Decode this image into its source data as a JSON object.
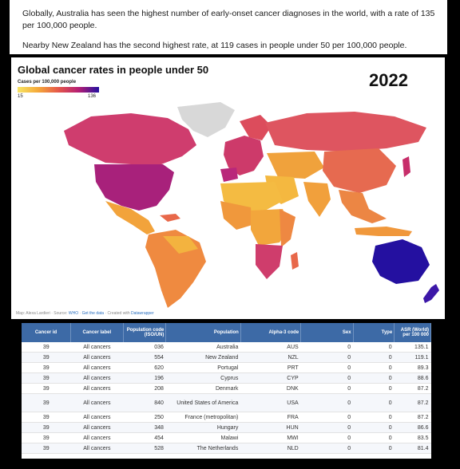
{
  "article": {
    "paragraph1": "Globally, Australia has seen the highest number of early-onset cancer diagnoses in the world, with a rate of 135 per 100,000 people.",
    "paragraph2": "Nearby New Zealand has the second highest rate, at 119 cases in people under 50 per 100,000 people."
  },
  "map": {
    "title": "Global cancer rates in people under 50",
    "year": "2022",
    "legend_title": "Cases per 100,000 people",
    "legend_min": "15",
    "legend_max": "136",
    "credit_prefix": "Map: Alexa Lardieri · Source: ",
    "credit_source": "WHO",
    "credit_mid": " · ",
    "credit_getdata": "Get the data",
    "credit_suffix": " · Created with ",
    "credit_tool": "Datawrapper",
    "colors": {
      "low": "#f7e463",
      "mid": "#f5a93a",
      "high_mid": "#e5584a",
      "high": "#b41e74",
      "max": "#2410a0",
      "no_data": "#d8d8d8"
    }
  },
  "table": {
    "headers": [
      "Cancer id",
      "Cancer label",
      "Population code (ISO/UN)",
      "Population",
      "Alpha-3 code",
      "Sex",
      "Type",
      "ASR (World) per 100 000"
    ],
    "rows": [
      {
        "id": "39",
        "label": "All cancers",
        "code": "036",
        "population": "Australia",
        "alpha3": "AUS",
        "sex": "0",
        "type": "0",
        "asr": "135.1"
      },
      {
        "id": "39",
        "label": "All cancers",
        "code": "554",
        "population": "New Zealand",
        "alpha3": "NZL",
        "sex": "0",
        "type": "0",
        "asr": "119.1"
      },
      {
        "id": "39",
        "label": "All cancers",
        "code": "620",
        "population": "Portugal",
        "alpha3": "PRT",
        "sex": "0",
        "type": "0",
        "asr": "89.3"
      },
      {
        "id": "39",
        "label": "All cancers",
        "code": "196",
        "population": "Cyprus",
        "alpha3": "CYP",
        "sex": "0",
        "type": "0",
        "asr": "88.6"
      },
      {
        "id": "39",
        "label": "All cancers",
        "code": "208",
        "population": "Denmark",
        "alpha3": "DNK",
        "sex": "0",
        "type": "0",
        "asr": "87.2"
      },
      {
        "id": "39",
        "label": "All cancers",
        "code": "840",
        "population": "United States of America",
        "alpha3": "USA",
        "sex": "0",
        "type": "0",
        "asr": "87.2"
      },
      {
        "id": "39",
        "label": "All cancers",
        "code": "250",
        "population": "France (metropolitan)",
        "alpha3": "FRA",
        "sex": "0",
        "type": "0",
        "asr": "87.2"
      },
      {
        "id": "39",
        "label": "All cancers",
        "code": "348",
        "population": "Hungary",
        "alpha3": "HUN",
        "sex": "0",
        "type": "0",
        "asr": "86.6"
      },
      {
        "id": "39",
        "label": "All cancers",
        "code": "454",
        "population": "Malawi",
        "alpha3": "MWI",
        "sex": "0",
        "type": "0",
        "asr": "83.5"
      },
      {
        "id": "39",
        "label": "All cancers",
        "code": "528",
        "population": "The Netherlands",
        "alpha3": "NLD",
        "sex": "0",
        "type": "0",
        "asr": "81.4"
      }
    ]
  }
}
